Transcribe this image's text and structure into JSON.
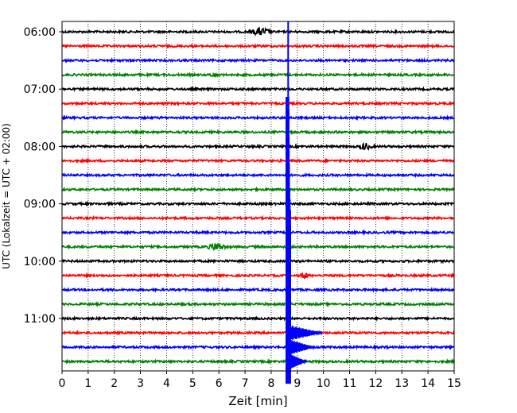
{
  "chart_data": {
    "type": "line",
    "title": "",
    "xlabel": "Zeit  [min]",
    "ylabel": "UTC (Lokalzeit = UTC + 02:00)",
    "xlim": [
      0,
      15
    ],
    "x_ticks": [
      "0",
      "1",
      "2",
      "3",
      "4",
      "5",
      "6",
      "7",
      "8",
      "9",
      "10",
      "11",
      "12",
      "13",
      "14",
      "15"
    ],
    "y_tick_labels": [
      "06:00",
      "07:00",
      "08:00",
      "09:00",
      "10:00",
      "11:00"
    ],
    "grid": "vertical dotted at each minute",
    "row_interval_minutes": 15,
    "row_colors": [
      "#000000",
      "#ff0000",
      "#0000ff",
      "#008000"
    ],
    "rows": [
      {
        "time": "06:00",
        "events": [
          {
            "t": 7.6,
            "amp": 2.2,
            "dur": 0.5
          }
        ]
      },
      {
        "time": "06:15",
        "events": []
      },
      {
        "time": "06:30",
        "events": []
      },
      {
        "time": "06:45",
        "events": [
          {
            "t": 5.8,
            "amp": 1.2,
            "dur": 0.2
          }
        ]
      },
      {
        "time": "07:00",
        "events": []
      },
      {
        "time": "07:15",
        "events": []
      },
      {
        "time": "07:30",
        "events": []
      },
      {
        "time": "07:45",
        "events": []
      },
      {
        "time": "08:00",
        "events": [
          {
            "t": 11.6,
            "amp": 2.0,
            "dur": 0.3
          }
        ]
      },
      {
        "time": "08:15",
        "events": []
      },
      {
        "time": "08:30",
        "events": []
      },
      {
        "time": "08:45",
        "events": []
      },
      {
        "time": "09:00",
        "events": []
      },
      {
        "time": "09:15",
        "events": []
      },
      {
        "time": "09:30",
        "events": []
      },
      {
        "time": "09:45",
        "events": [
          {
            "t": 5.9,
            "amp": 2.4,
            "dur": 0.4
          }
        ]
      },
      {
        "time": "10:00",
        "events": []
      },
      {
        "time": "10:15",
        "events": [
          {
            "t": 9.3,
            "amp": 1.8,
            "dur": 0.2
          }
        ]
      },
      {
        "time": "10:30",
        "events": []
      },
      {
        "time": "10:45",
        "events": []
      },
      {
        "time": "11:00",
        "events": []
      },
      {
        "time": "11:15",
        "events": []
      },
      {
        "time": "11:30",
        "events": []
      },
      {
        "time": "11:45",
        "events": []
      }
    ],
    "marker": {
      "t": 8.65,
      "color": "#0000ff"
    },
    "earthquake": {
      "t_start": 8.55,
      "color": "#0000ff",
      "envelope": [
        {
          "time": "07:15",
          "amp": 0.8
        },
        {
          "time": "07:30",
          "amp": 1.0
        },
        {
          "time": "07:45",
          "amp": 1.0
        },
        {
          "time": "08:00",
          "amp": 1.2
        },
        {
          "time": "08:15",
          "amp": 1.2
        },
        {
          "time": "08:30",
          "amp": 1.5
        },
        {
          "time": "08:45",
          "amp": 1.5
        },
        {
          "time": "09:00",
          "amp": 2.0
        },
        {
          "time": "09:15",
          "amp": 2.5
        },
        {
          "time": "09:30",
          "amp": 3.0
        },
        {
          "time": "09:45",
          "amp": 3.0
        },
        {
          "time": "10:00",
          "amp": 3.0
        },
        {
          "time": "10:15",
          "amp": 3.0
        },
        {
          "time": "10:30",
          "amp": 3.0
        },
        {
          "time": "10:45",
          "amp": 3.0
        },
        {
          "time": "11:00",
          "amp": 3.0
        },
        {
          "time": "11:15",
          "amp": 3.0
        },
        {
          "time": "11:30",
          "amp": 3.0
        },
        {
          "time": "11:45",
          "amp": 3.0
        }
      ]
    }
  }
}
